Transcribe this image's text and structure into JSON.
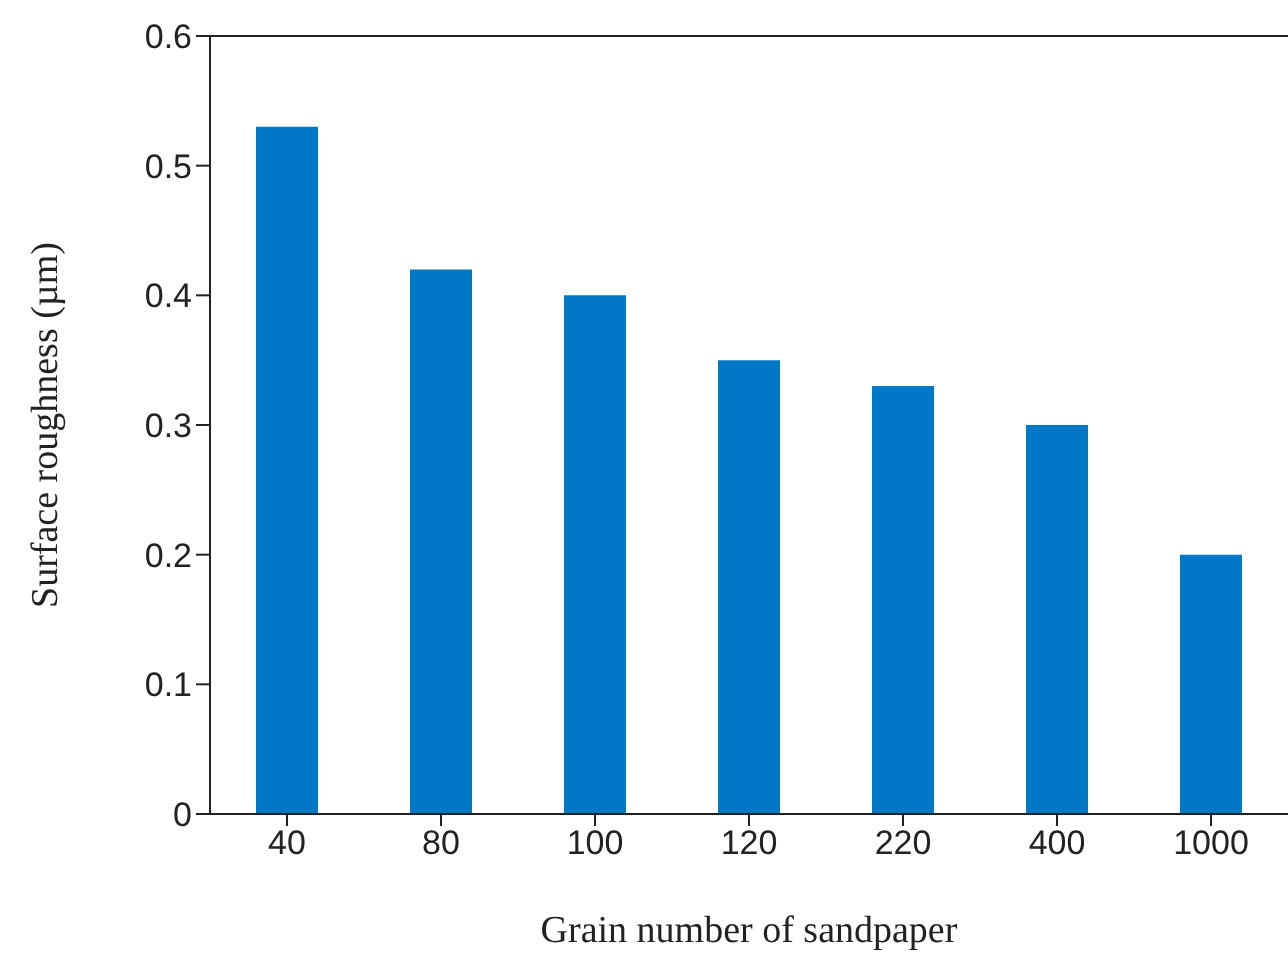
{
  "chart_data": {
    "type": "bar",
    "xlabel": "Grain number of sandpaper",
    "ylabel": "Surface roughness (µm)",
    "categories": [
      "40",
      "80",
      "100",
      "120",
      "220",
      "400",
      "1000"
    ],
    "values": [
      0.53,
      0.42,
      0.4,
      0.35,
      0.33,
      0.3,
      0.2
    ],
    "color": "#0078c6",
    "ylim": [
      0,
      0.6
    ],
    "yticks": [
      0,
      0.1,
      0.2,
      0.3,
      0.4,
      0.5,
      0.6
    ],
    "grid": false,
    "legend": false
  }
}
